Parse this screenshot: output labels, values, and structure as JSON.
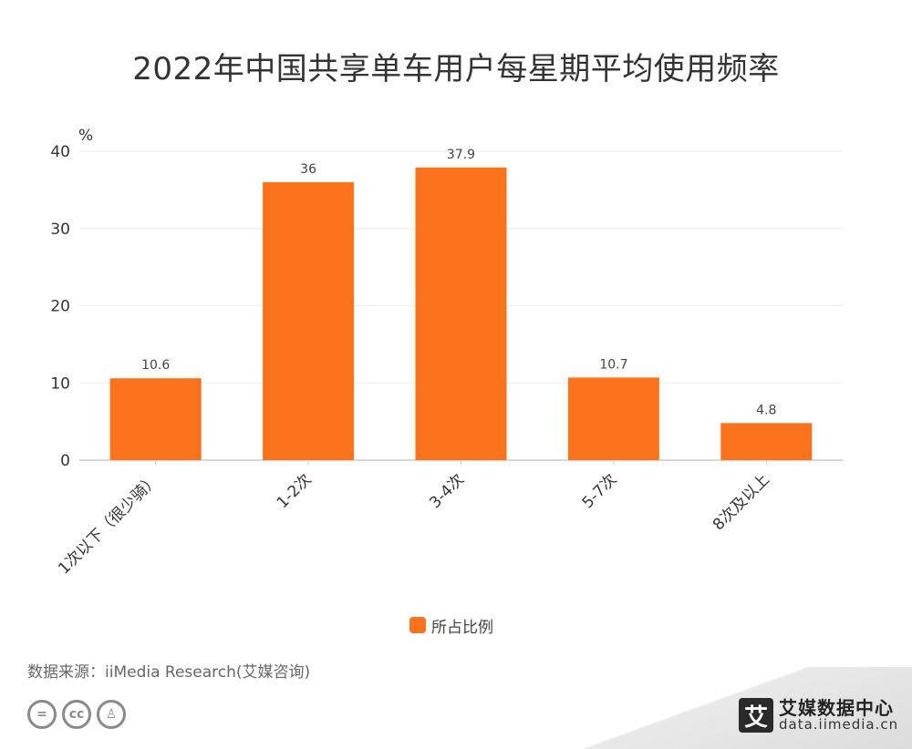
{
  "title": "2022年中国共享单车用户每星期平均使用频率",
  "source": "数据来源：iiMedia Research(艾媒咨询)",
  "brand": {
    "name": "艾媒数据中心",
    "url": "data.iimedia.cn",
    "logo_char": "艾"
  },
  "license_icons": [
    "equals-icon",
    "cc-icon",
    "person-icon"
  ],
  "colors": {
    "bar": "#fa721c",
    "grid": "#ececec",
    "axis": "#cccccc",
    "text": "#333333"
  },
  "chart_data": {
    "type": "bar",
    "title": "2022年中国共享单车用户每星期平均使用频率",
    "categories": [
      "1次以下（很少骑）",
      "1-2次",
      "3-4次",
      "5-7次",
      "8次及以上"
    ],
    "series": [
      {
        "name": "所占比例",
        "values": [
          10.6,
          36,
          37.9,
          10.7,
          4.8
        ]
      }
    ],
    "y_unit": "%",
    "ylim": [
      0,
      40
    ],
    "yticks": [
      0,
      10,
      20,
      30,
      40
    ],
    "grid": true,
    "legend": "bottom-center"
  }
}
